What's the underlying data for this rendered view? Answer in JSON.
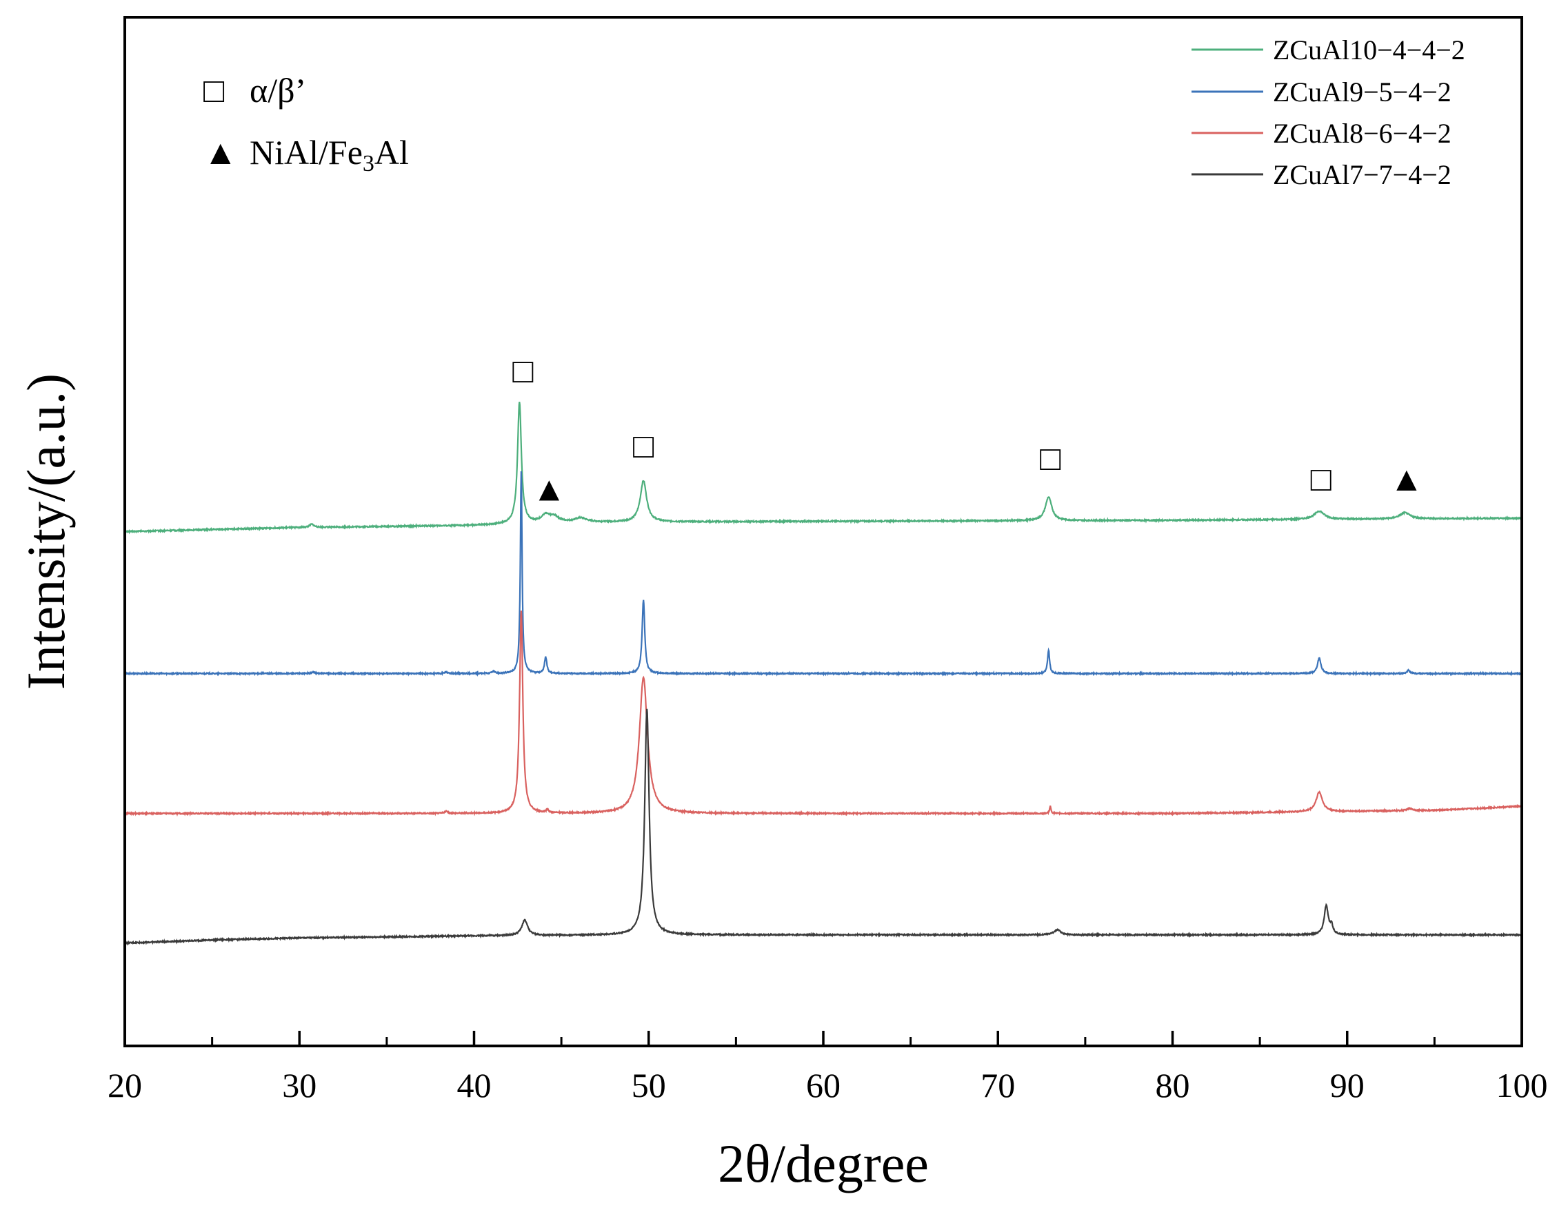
{
  "chart_data": {
    "type": "line",
    "xlabel": "2θ/degree",
    "ylabel": "Intensity/(a.u.)",
    "xlim": [
      20,
      100
    ],
    "ylim": [
      0,
      100
    ],
    "x_ticks": [
      "20",
      "30",
      "40",
      "50",
      "60",
      "70",
      "80",
      "90",
      "100"
    ],
    "x_tick_values": [
      20,
      30,
      40,
      50,
      60,
      70,
      80,
      90,
      100
    ],
    "y_ticks_visible": false,
    "grid": false,
    "legend_position": "top-right",
    "series": [
      {
        "name": "ZCuAl10−4−4−2",
        "color": "#4daf7c",
        "baseline": [
          [
            20,
            50.0
          ],
          [
            30,
            50.4
          ],
          [
            40,
            50.6
          ],
          [
            45,
            50.9
          ],
          [
            60,
            51.0
          ],
          [
            80,
            51.1
          ],
          [
            100,
            51.3
          ]
        ],
        "peaks": [
          [
            30.7,
            0.3,
            0.15
          ],
          [
            42.6,
            11.8,
            0.13
          ],
          [
            44.1,
            0.7,
            0.3
          ],
          [
            44.6,
            0.5,
            0.3
          ],
          [
            46.1,
            0.4,
            0.4
          ],
          [
            49.7,
            4.0,
            0.22
          ],
          [
            72.9,
            2.3,
            0.22
          ],
          [
            88.4,
            0.8,
            0.35
          ],
          [
            93.3,
            0.6,
            0.35
          ]
        ]
      },
      {
        "name": "ZCuAl9−5−4−2",
        "color": "#3b73b9",
        "baseline": [
          [
            20,
            36.2
          ],
          [
            100,
            36.2
          ]
        ],
        "peaks": [
          [
            30.8,
            0.15,
            0.1
          ],
          [
            38.4,
            0.15,
            0.1
          ],
          [
            41.1,
            0.2,
            0.1
          ],
          [
            42.7,
            19.7,
            0.06
          ],
          [
            44.1,
            1.6,
            0.08
          ],
          [
            49.7,
            7.1,
            0.09
          ],
          [
            72.9,
            2.3,
            0.07
          ],
          [
            88.4,
            1.5,
            0.12
          ],
          [
            93.5,
            0.3,
            0.1
          ]
        ]
      },
      {
        "name": "ZCuAl8−6−4−2",
        "color": "#d9615f",
        "baseline": [
          [
            20,
            22.6
          ],
          [
            60,
            22.6
          ],
          [
            80,
            22.6
          ],
          [
            90,
            22.8
          ],
          [
            95,
            22.9
          ],
          [
            100,
            23.3
          ]
        ],
        "peaks": [
          [
            38.4,
            0.2,
            0.1
          ],
          [
            42.7,
            19.7,
            0.11
          ],
          [
            44.2,
            0.3,
            0.08
          ],
          [
            49.7,
            13.2,
            0.28
          ],
          [
            73.0,
            0.7,
            0.05
          ],
          [
            88.4,
            1.9,
            0.22
          ],
          [
            93.6,
            0.2,
            0.2
          ]
        ]
      },
      {
        "name": "ZCuAl7−7−4−2",
        "color": "#3a3a3a",
        "baseline": [
          [
            20,
            10.0
          ],
          [
            25,
            10.3
          ],
          [
            30,
            10.5
          ],
          [
            40,
            10.7
          ],
          [
            50,
            10.8
          ],
          [
            70,
            10.8
          ],
          [
            100,
            10.8
          ]
        ],
        "peaks": [
          [
            42.9,
            1.5,
            0.2
          ],
          [
            49.9,
            22.0,
            0.15
          ],
          [
            73.4,
            0.5,
            0.22
          ],
          [
            88.8,
            2.8,
            0.14
          ],
          [
            89.1,
            0.8,
            0.1
          ]
        ]
      }
    ],
    "phase_legend": [
      {
        "symbol": "□",
        "label": "α/β’"
      },
      {
        "symbol": "▲",
        "label_main": "NiAl/Fe",
        "label_sub": "3",
        "label_tail": "Al"
      }
    ],
    "annotations": [
      {
        "symbol": "□",
        "x": 42.8,
        "y": 64.5
      },
      {
        "symbol": "▲",
        "x": 44.3,
        "y": 53.0
      },
      {
        "symbol": "□",
        "x": 49.7,
        "y": 57.2
      },
      {
        "symbol": "□",
        "x": 73.0,
        "y": 56.0
      },
      {
        "symbol": "□",
        "x": 88.5,
        "y": 54.0
      },
      {
        "symbol": "▲",
        "x": 93.4,
        "y": 54.0
      }
    ]
  }
}
